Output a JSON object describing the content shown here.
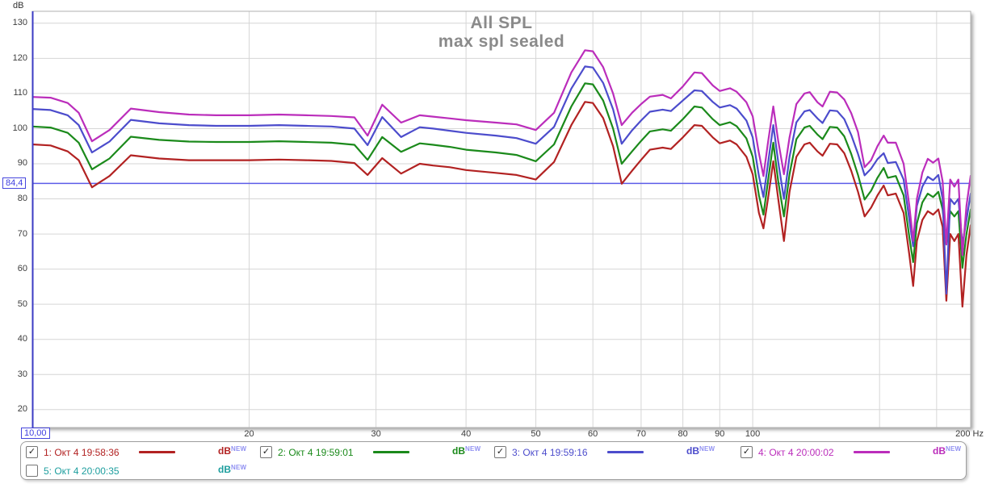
{
  "chart": {
    "y_unit_label": "dB",
    "x_min_field_value": "10,00",
    "hline_field_value": "84,4",
    "x_end_label": "200 Hz"
  },
  "chart_data": {
    "type": "line",
    "title": "All SPL",
    "subtitle": "max spl sealed",
    "legend_position": "bottom",
    "grid": true,
    "x_axis": {
      "scale": "log",
      "unit": "Hz",
      "min_hz": 10,
      "max_hz": 200.7,
      "ticks": [
        20,
        30,
        40,
        50,
        60,
        70,
        80,
        90,
        100
      ],
      "gridlines_hz": [
        20,
        30,
        40,
        50,
        60,
        70,
        80,
        90,
        100,
        150,
        180
      ]
    },
    "y_axis": {
      "unit": "dB",
      "min_db": 14.9,
      "max_db": 133.4,
      "ticks": [
        130,
        120,
        110,
        100,
        90,
        80,
        70,
        60,
        50,
        40,
        30,
        20
      ]
    },
    "hline": {
      "value_db": 84.4,
      "color": "#5c5ce8"
    },
    "frequencies_hz": [
      10,
      10.6,
      11.2,
      11.6,
      12.1,
      12.8,
      13.7,
      15,
      16.5,
      18,
      20,
      22,
      24,
      26,
      28,
      29.2,
      30.6,
      32.5,
      34.5,
      36,
      38,
      40,
      44,
      47,
      50,
      53,
      56,
      58.5,
      60,
      62,
      64,
      65.8,
      68,
      70,
      72,
      75,
      77,
      80,
      83,
      85,
      88,
      90,
      93,
      95,
      98,
      100,
      102,
      103.5,
      105,
      106.8,
      108.5,
      110.5,
      112.5,
      115,
      118,
      120,
      123,
      125,
      128,
      131,
      134,
      137,
      140,
      143,
      146,
      149,
      152,
      154,
      158,
      162,
      165,
      167,
      169,
      172,
      175,
      178,
      181,
      183.5,
      185.7,
      188,
      190.5,
      193,
      195.5,
      198,
      200.7
    ],
    "series": [
      {
        "name": "1: Окт 4 19:58:36",
        "color": "#b22222",
        "spl_db": [
          95.5,
          95.2,
          93.5,
          91,
          83.3,
          86.5,
          92.4,
          91.5,
          91,
          91,
          91,
          91.2,
          91,
          90.8,
          90.2,
          86.8,
          91.6,
          87.2,
          90,
          89.5,
          89,
          88.2,
          87.4,
          86.8,
          85.5,
          90.5,
          101,
          107.6,
          107.3,
          103,
          95,
          84.3,
          88,
          91.1,
          94,
          94.6,
          94.2,
          97.5,
          101,
          100.8,
          97.5,
          95.8,
          96.6,
          95.5,
          92,
          87,
          76,
          71.6,
          80,
          90.7,
          80,
          68,
          82,
          92,
          95.5,
          96,
          93.5,
          92.3,
          95.7,
          95.5,
          93,
          88,
          82,
          75,
          77.5,
          81,
          83.8,
          81,
          81.5,
          76,
          64,
          55.2,
          68,
          74,
          76.5,
          75.5,
          77,
          72,
          51,
          70,
          68,
          70,
          49.3,
          64,
          72.5
        ]
      },
      {
        "name": "2: Окт 4 19:59:01",
        "color": "#1b8a1b",
        "spl_db": [
          100.6,
          100.3,
          98.8,
          96,
          88.4,
          91.5,
          97.7,
          96.8,
          96.3,
          96.2,
          96.2,
          96.4,
          96.2,
          96,
          95.4,
          91.1,
          97.6,
          93.4,
          95.8,
          95.4,
          94.8,
          94,
          93.2,
          92.5,
          90.7,
          95.5,
          106.3,
          112.9,
          112.6,
          108,
          100,
          90,
          93.5,
          96.5,
          99.2,
          99.8,
          99.4,
          102.7,
          106.3,
          106,
          102.7,
          101,
          101.8,
          100.7,
          97.2,
          92,
          81,
          75.5,
          85,
          96,
          85,
          75,
          87,
          97,
          100.3,
          100.8,
          98.3,
          97,
          100.5,
          100.3,
          97.8,
          92.8,
          86.8,
          79.8,
          82.3,
          86,
          88.8,
          86,
          86.5,
          81,
          69,
          62,
          73,
          79,
          81.5,
          80.5,
          82,
          77,
          67,
          76.5,
          75,
          76.5,
          60.4,
          70,
          77
        ]
      },
      {
        "name": "3: Окт 4 19:59:16",
        "color": "#4c4ccc",
        "spl_db": [
          105.6,
          105.3,
          103.8,
          101,
          93.2,
          96.3,
          102.5,
          101.5,
          101,
          100.8,
          100.8,
          101,
          100.8,
          100.6,
          100,
          95.3,
          103.3,
          97.6,
          100.4,
          100,
          99.4,
          98.8,
          98,
          97.3,
          95.7,
          100.5,
          111.4,
          117.7,
          117.4,
          113,
          105.5,
          95.7,
          99.5,
          102.3,
          104.8,
          105.4,
          105,
          108,
          110.9,
          110.7,
          107.6,
          106,
          106.7,
          105.7,
          102.3,
          97.5,
          86.5,
          80.5,
          90,
          101,
          90.5,
          80,
          92,
          101.8,
          104.9,
          105.3,
          102.9,
          101.6,
          105.2,
          105,
          102.7,
          98.2,
          92.8,
          86.7,
          88.6,
          91.3,
          93,
          90.2,
          90.5,
          85.5,
          74,
          66.5,
          78,
          83.5,
          86.3,
          85.3,
          86.8,
          80,
          53,
          80,
          78.5,
          80,
          67,
          74,
          81.5
        ]
      },
      {
        "name": "4: Окт 4 20:00:02",
        "color": "#bb2dbb",
        "spl_db": [
          109,
          108.8,
          107.3,
          104.5,
          96.4,
          99.6,
          105.7,
          104.7,
          104,
          103.8,
          103.8,
          104,
          103.8,
          103.6,
          103.2,
          98,
          106.8,
          101.7,
          103.8,
          103.4,
          102.9,
          102.4,
          101.7,
          101.2,
          99.6,
          104.5,
          116,
          122.3,
          122,
          117.5,
          110,
          101,
          104.5,
          107,
          109.1,
          109.6,
          108.6,
          112,
          116,
          115.8,
          112.3,
          110.7,
          111.5,
          110.5,
          107.5,
          103.5,
          93,
          86.5,
          96,
          106.3,
          96.5,
          87,
          97.5,
          107,
          110,
          110.4,
          107.5,
          106.3,
          110.5,
          110.3,
          108.3,
          104.4,
          99,
          89,
          91,
          95,
          98,
          96,
          96,
          90,
          78,
          68,
          80,
          87.5,
          91.4,
          90.3,
          91.5,
          85,
          67,
          85.5,
          83.5,
          85.5,
          64,
          78,
          86.6
        ]
      }
    ]
  },
  "legend": {
    "checkmark": "✓",
    "sup_color": "#9191f2",
    "entries": [
      {
        "label": "1: Окт 4 19:58:36",
        "checked": true,
        "color": "#b22222",
        "unit": "dB",
        "unit_sup": "NEW",
        "show_line": true
      },
      {
        "label": "2: Окт 4 19:59:01",
        "checked": true,
        "color": "#1b8a1b",
        "unit": "dB",
        "unit_sup": "NEW",
        "show_line": true
      },
      {
        "label": "3: Окт 4 19:59:16",
        "checked": true,
        "color": "#4c4ccc",
        "unit": "dB",
        "unit_sup": "NEW",
        "show_line": true
      },
      {
        "label": "4: Окт 4 20:00:02",
        "checked": true,
        "color": "#bb2dbb",
        "unit": "dB",
        "unit_sup": "NEW",
        "show_line": true
      },
      {
        "label": "5: Окт 4 20:00:35",
        "checked": false,
        "color": "#1d9e9e",
        "unit": "dB",
        "unit_sup": "NEW",
        "show_line": false
      }
    ]
  }
}
